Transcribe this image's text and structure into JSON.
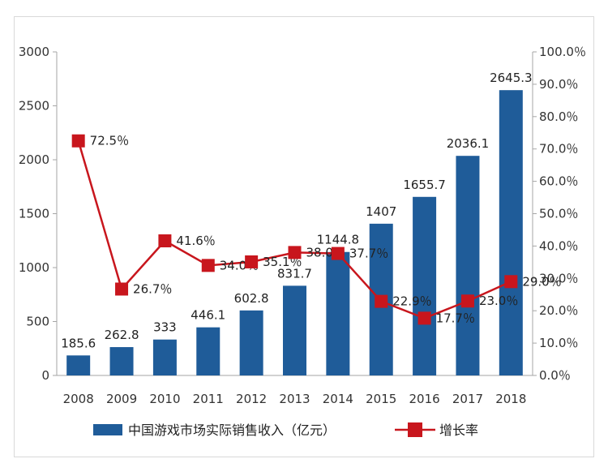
{
  "chart_data": {
    "type": "bar",
    "categories": [
      "2008",
      "2009",
      "2010",
      "2011",
      "2012",
      "2013",
      "2014",
      "2015",
      "2016",
      "2017",
      "2018"
    ],
    "series": [
      {
        "name": "中国游戏市场实际销售收入（亿元）",
        "kind": "bar",
        "axis": "left",
        "values": [
          185.6,
          262.8,
          333,
          446.1,
          602.8,
          831.7,
          1144.8,
          1407,
          1655.7,
          2036.1,
          2645.3
        ],
        "labels": [
          "185.6",
          "262.8",
          "333",
          "446.1",
          "602.8",
          "831.7",
          "1144.8",
          "1407",
          "1655.7",
          "2036.1",
          "2645.3"
        ],
        "color": "#1f5c99"
      },
      {
        "name": "增长率",
        "kind": "line",
        "axis": "right",
        "values": [
          72.5,
          26.7,
          41.6,
          34.0,
          35.1,
          38.0,
          37.7,
          22.9,
          17.7,
          23.0,
          29.0
        ],
        "labels": [
          "72.5％",
          "26.7％",
          "41.6％",
          "34.0％",
          "35.1％",
          "38.0％",
          "37.7％",
          "22.9％",
          "17.7％",
          "23.0％",
          "29.0％"
        ],
        "color": "#c8161d"
      }
    ],
    "y_left": {
      "ylim": [
        0,
        3000
      ],
      "ticks": [
        "0",
        "500",
        "1000",
        "1500",
        "2000",
        "2500",
        "3000"
      ]
    },
    "y_right": {
      "ylim": [
        0,
        100
      ],
      "ticks": [
        "0.0％",
        "10.0％",
        "20.0％",
        "30.0％",
        "40.0％",
        "50.0％",
        "60.0％",
        "70.0％",
        "80.0％",
        "90.0％",
        "100.0％"
      ]
    },
    "legend": {
      "placement": "bottom",
      "items": [
        "中国游戏市场实际销售收入（亿元）",
        "增长率"
      ]
    },
    "grid": false
  }
}
